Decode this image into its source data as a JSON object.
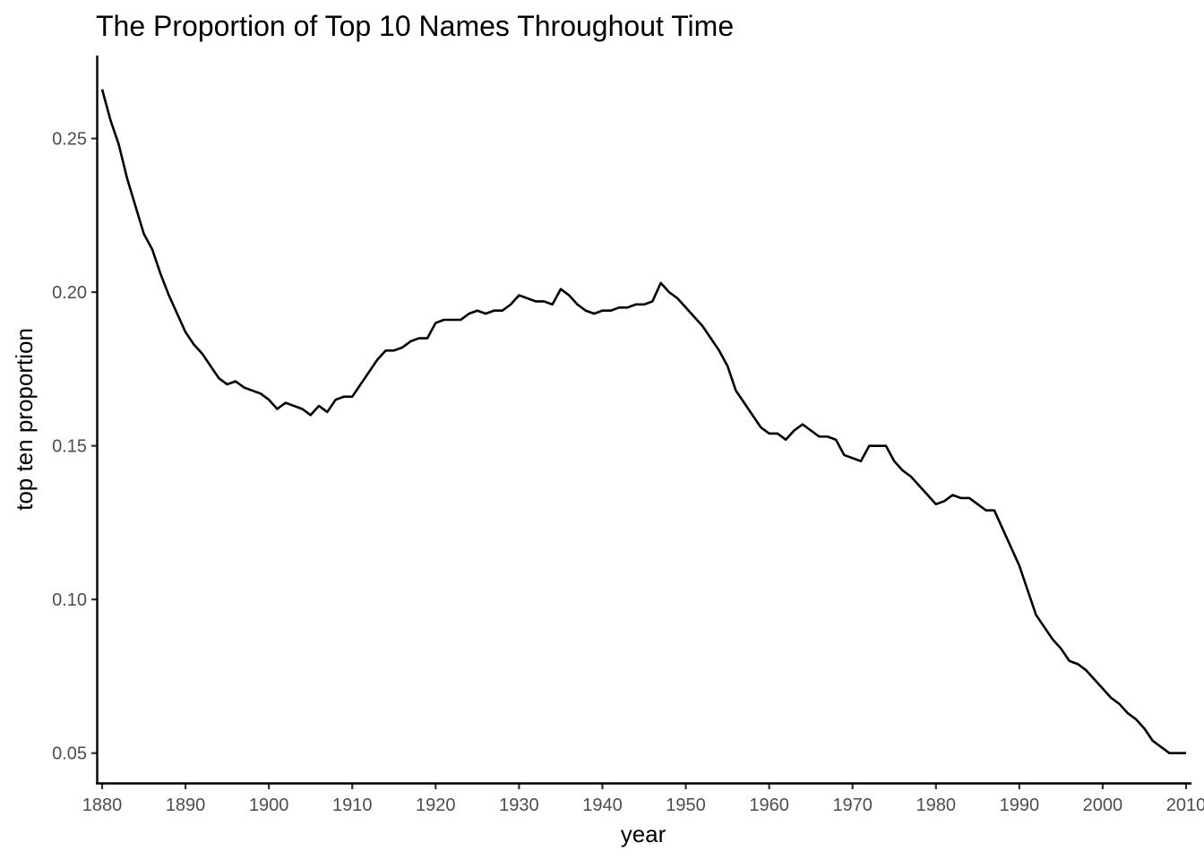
{
  "chart_data": {
    "type": "line",
    "title": "The Proportion of Top 10 Names Throughout Time",
    "xlabel": "year",
    "ylabel": "top ten proportion",
    "xlim": [
      1880,
      2010
    ],
    "ylim": [
      0.04,
      0.277
    ],
    "x_ticks": [
      1880,
      1890,
      1900,
      1910,
      1920,
      1930,
      1940,
      1950,
      1960,
      1970,
      1980,
      1990,
      2000,
      2010
    ],
    "x_tick_labels": [
      "1880",
      "1890",
      "1900",
      "1910",
      "1920",
      "1930",
      "1940",
      "1950",
      "1960",
      "1970",
      "1980",
      "1990",
      "2000",
      "2010"
    ],
    "y_ticks": [
      0.05,
      0.1,
      0.15,
      0.2,
      0.25
    ],
    "y_tick_labels": [
      "0.05",
      "0.10",
      "0.15",
      "0.20",
      "0.25"
    ],
    "grid": false,
    "line_color": "#000000",
    "series": [
      {
        "x": [
          1880,
          1881,
          1882,
          1883,
          1884,
          1885,
          1886,
          1887,
          1888,
          1889,
          1890,
          1891,
          1892,
          1893,
          1894,
          1895,
          1896,
          1897,
          1898,
          1899,
          1900,
          1901,
          1902,
          1903,
          1904,
          1905,
          1906,
          1907,
          1908,
          1909,
          1910,
          1911,
          1912,
          1913,
          1914,
          1915,
          1916,
          1917,
          1918,
          1919,
          1920,
          1921,
          1922,
          1923,
          1924,
          1925,
          1926,
          1927,
          1928,
          1929,
          1930,
          1931,
          1932,
          1933,
          1934,
          1935,
          1936,
          1937,
          1938,
          1939,
          1940,
          1941,
          1942,
          1943,
          1944,
          1945,
          1946,
          1947,
          1948,
          1949,
          1950,
          1951,
          1952,
          1953,
          1954,
          1955,
          1956,
          1957,
          1958,
          1959,
          1960,
          1961,
          1962,
          1963,
          1964,
          1965,
          1966,
          1967,
          1968,
          1969,
          1970,
          1971,
          1972,
          1973,
          1974,
          1975,
          1976,
          1977,
          1978,
          1979,
          1980,
          1981,
          1982,
          1983,
          1984,
          1985,
          1986,
          1987,
          1988,
          1989,
          1990,
          1991,
          1992,
          1993,
          1994,
          1995,
          1996,
          1997,
          1998,
          1999,
          2000,
          2001,
          2002,
          2003,
          2004,
          2005,
          2006,
          2007,
          2008,
          2009,
          2010
        ],
        "values": [
          0.266,
          0.256,
          0.248,
          0.237,
          0.228,
          0.219,
          0.214,
          0.206,
          0.199,
          0.193,
          0.187,
          0.183,
          0.18,
          0.176,
          0.172,
          0.17,
          0.171,
          0.169,
          0.168,
          0.167,
          0.165,
          0.162,
          0.164,
          0.163,
          0.162,
          0.16,
          0.163,
          0.161,
          0.165,
          0.166,
          0.166,
          0.17,
          0.174,
          0.178,
          0.181,
          0.181,
          0.182,
          0.184,
          0.185,
          0.185,
          0.19,
          0.191,
          0.191,
          0.191,
          0.193,
          0.194,
          0.193,
          0.194,
          0.194,
          0.196,
          0.199,
          0.198,
          0.197,
          0.197,
          0.196,
          0.201,
          0.199,
          0.196,
          0.194,
          0.193,
          0.194,
          0.194,
          0.195,
          0.195,
          0.196,
          0.196,
          0.197,
          0.203,
          0.2,
          0.198,
          0.195,
          0.192,
          0.189,
          0.185,
          0.181,
          0.176,
          0.168,
          0.164,
          0.16,
          0.156,
          0.154,
          0.154,
          0.152,
          0.155,
          0.157,
          0.155,
          0.153,
          0.153,
          0.152,
          0.147,
          0.146,
          0.145,
          0.15,
          0.15,
          0.15,
          0.145,
          0.142,
          0.14,
          0.137,
          0.134,
          0.131,
          0.132,
          0.134,
          0.133,
          0.133,
          0.131,
          0.129,
          0.129,
          0.123,
          0.117,
          0.111,
          0.103,
          0.095,
          0.091,
          0.087,
          0.084,
          0.08,
          0.079,
          0.077,
          0.074,
          0.071,
          0.068,
          0.066,
          0.063,
          0.061,
          0.058,
          0.054,
          0.052,
          0.05,
          0.05,
          0.05
        ]
      }
    ]
  }
}
